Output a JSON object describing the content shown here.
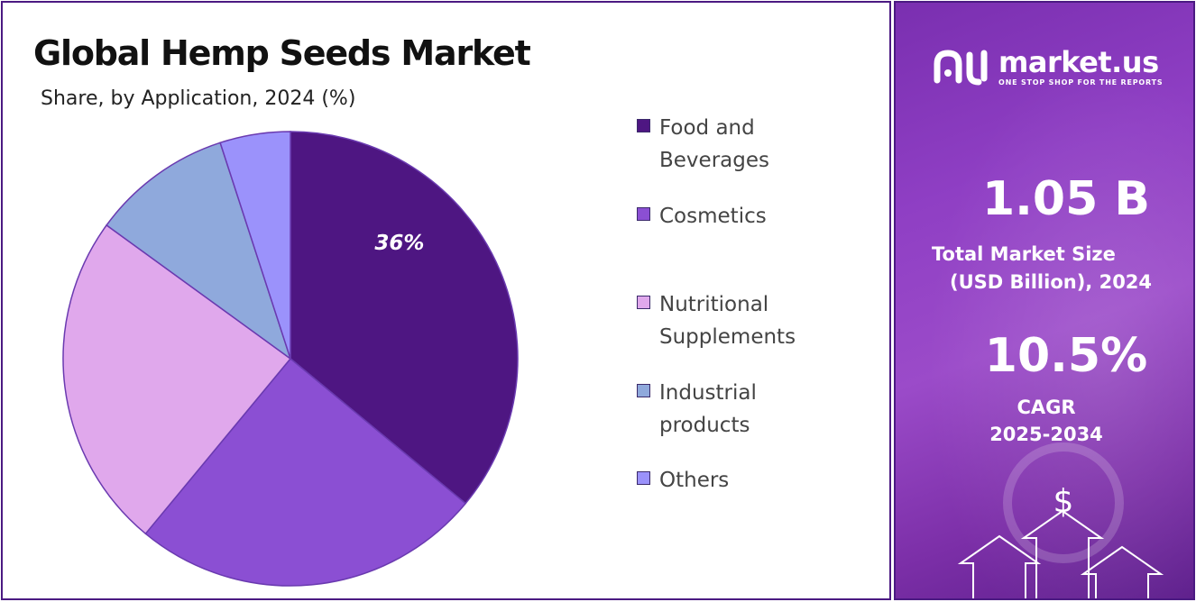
{
  "chart_data": {
    "type": "pie",
    "title": "Global Hemp Seeds Market",
    "subtitle": "Share, by Application, 2024 (%)",
    "slices": [
      {
        "label": "Food and Beverages",
        "value": 36,
        "color": "#4e1682",
        "data_label": "36%"
      },
      {
        "label": "Cosmetics",
        "value": 25,
        "color": "#8b4fd3",
        "data_label": ""
      },
      {
        "label": "Nutritional Supplements",
        "value": 24,
        "color": "#e0a8ec",
        "data_label": ""
      },
      {
        "label": "Industrial products",
        "value": 10,
        "color": "#8fa9dc",
        "data_label": ""
      },
      {
        "label": "Others",
        "value": 5,
        "color": "#9b92fb",
        "data_label": ""
      }
    ],
    "legend": [
      {
        "line1": "Food and",
        "line2": "Beverages",
        "color": "#4e1682"
      },
      {
        "line1": "Cosmetics",
        "line2": "",
        "color": "#8b4fd3"
      },
      {
        "line1": "Nutritional",
        "line2": "Supplements",
        "color": "#e0a8ec"
      },
      {
        "line1": "Industrial",
        "line2": "products",
        "color": "#8fa9dc"
      },
      {
        "line1": "Others",
        "line2": "",
        "color": "#9b92fb"
      }
    ],
    "legend_position": "right"
  },
  "brand": {
    "name": "market.us",
    "tagline": "ONE STOP SHOP FOR THE REPORTS"
  },
  "stats": {
    "market_size_value": "1.05 B",
    "market_size_label_1": "Total Market Size",
    "market_size_label_2": "(USD Billion), 2024",
    "cagr_value": "10.5%",
    "cagr_label_1": "CAGR",
    "cagr_label_2": "2025-2034"
  },
  "colors": {
    "panel_border": "#4b1a82",
    "side_panel": "#8f3fc4"
  }
}
